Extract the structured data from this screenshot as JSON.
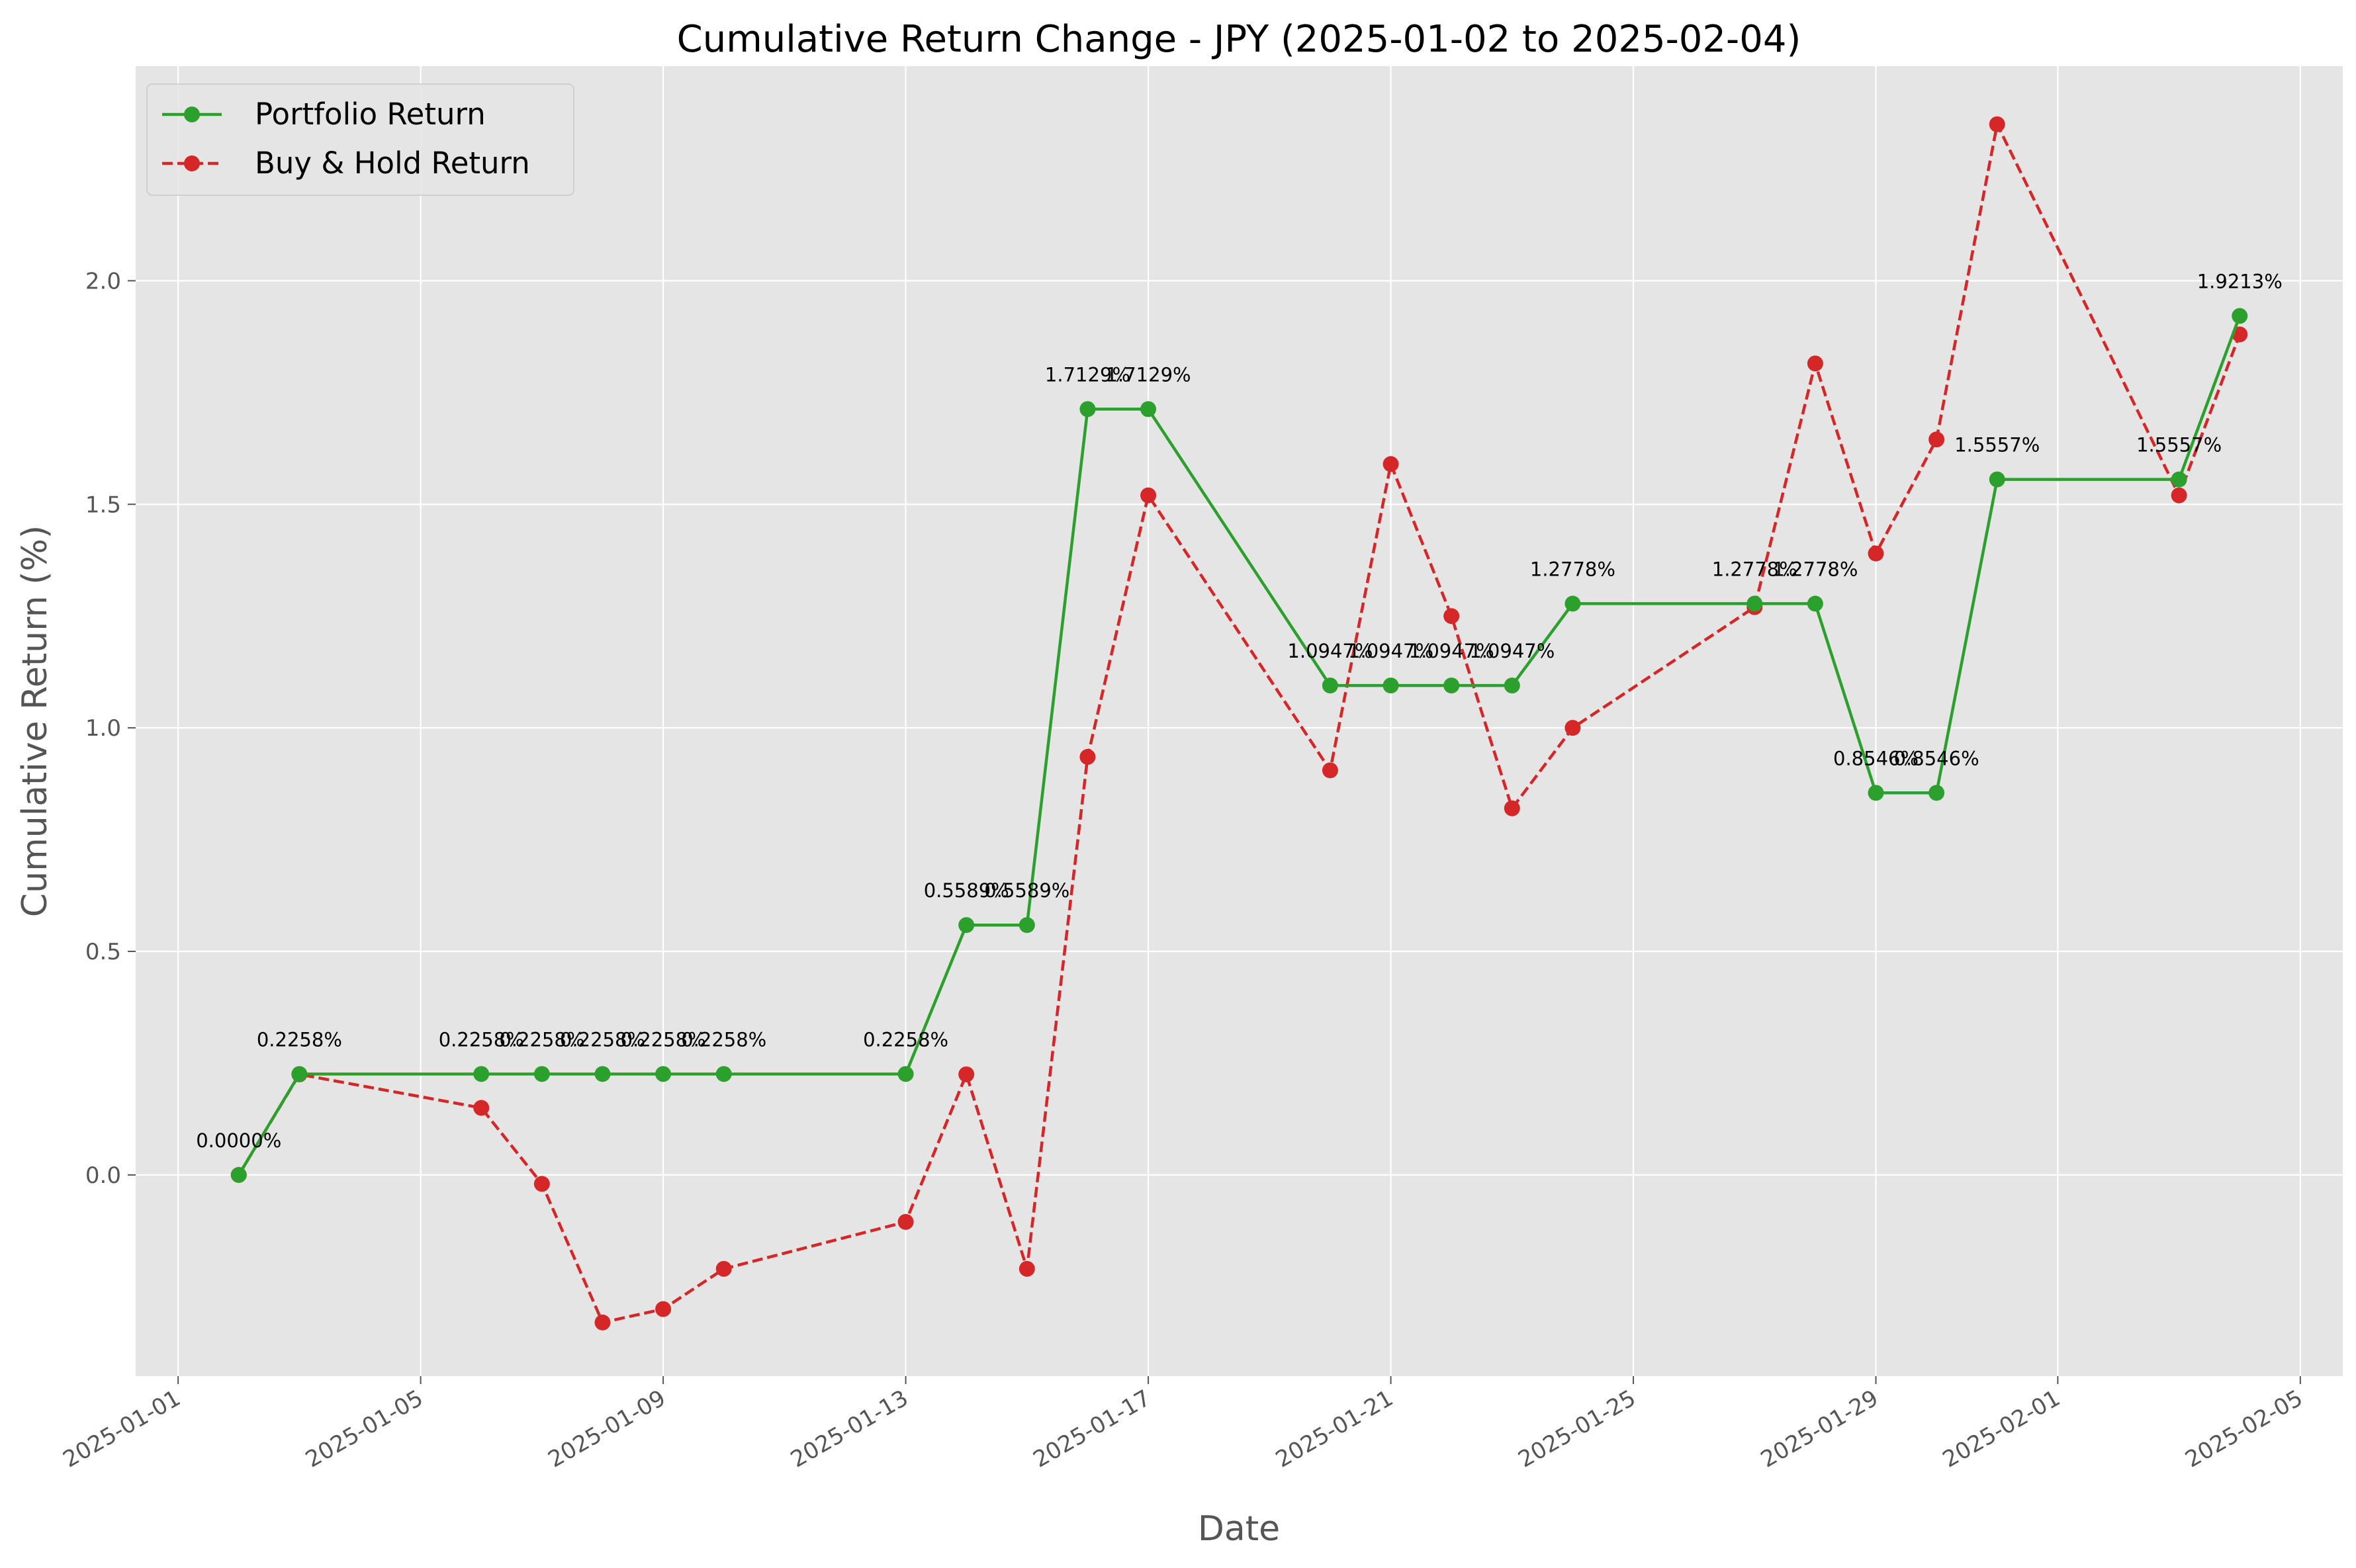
{
  "chart_data": {
    "type": "line",
    "title": "Cumulative Return Change - JPY (2025-01-02 to 2025-02-04)",
    "xlabel": "Date",
    "ylabel": "Cumulative Return (%)",
    "xlim": [
      "2025-01-01",
      "2025-02-05"
    ],
    "ylim": [
      -0.45,
      2.48
    ],
    "x_ticks": [
      "2025-01-01",
      "2025-01-05",
      "2025-01-09",
      "2025-01-13",
      "2025-01-17",
      "2025-01-21",
      "2025-01-25",
      "2025-01-29",
      "2025-02-01",
      "2025-02-05"
    ],
    "y_ticks": [
      0.0,
      0.5,
      1.0,
      1.5,
      2.0
    ],
    "y_tick_labels": [
      "0.0",
      "0.5",
      "1.0",
      "1.5",
      "2.0"
    ],
    "grid": true,
    "legend_position": "top-left",
    "x": [
      "2025-01-02",
      "2025-01-03",
      "2025-01-06",
      "2025-01-07",
      "2025-01-08",
      "2025-01-09",
      "2025-01-10",
      "2025-01-13",
      "2025-01-14",
      "2025-01-15",
      "2025-01-16",
      "2025-01-17",
      "2025-01-20",
      "2025-01-21",
      "2025-01-22",
      "2025-01-23",
      "2025-01-24",
      "2025-01-27",
      "2025-01-28",
      "2025-01-29",
      "2025-01-30",
      "2025-01-31",
      "2025-02-03",
      "2025-02-04"
    ],
    "series": [
      {
        "name": "Portfolio Return",
        "color": "#2ca02c",
        "style": "solid",
        "values": [
          0.0,
          0.2258,
          0.2258,
          0.2258,
          0.2258,
          0.2258,
          0.2258,
          0.2258,
          0.5589,
          0.5589,
          1.7129,
          1.7129,
          1.0947,
          1.0947,
          1.0947,
          1.0947,
          1.2778,
          1.2778,
          1.2778,
          0.8546,
          0.8546,
          1.5557,
          1.5557,
          1.9213
        ],
        "labels": [
          "0.0000%",
          "0.2258%",
          "0.2258%",
          "0.2258%",
          "0.2258%",
          "0.2258%",
          "0.2258%",
          "0.2258%",
          "0.5589%",
          "0.5589%",
          "1.7129%",
          "1.7129%",
          "1.0947%",
          "1.0947%",
          "1.0947%",
          "1.0947%",
          "1.2778%",
          "1.2778%",
          "1.2778%",
          "0.8546%",
          "0.8546%",
          "1.5557%",
          "1.5557%",
          "1.9213%"
        ]
      },
      {
        "name": "Buy & Hold Return",
        "color": "#d62728",
        "style": "dashed",
        "values": [
          0.0,
          0.225,
          0.15,
          -0.02,
          -0.33,
          -0.3,
          -0.21,
          -0.105,
          0.225,
          -0.21,
          0.935,
          1.52,
          0.905,
          1.59,
          1.25,
          0.82,
          1.0,
          1.27,
          1.815,
          1.39,
          1.645,
          2.35,
          1.52,
          1.88
        ]
      }
    ]
  }
}
